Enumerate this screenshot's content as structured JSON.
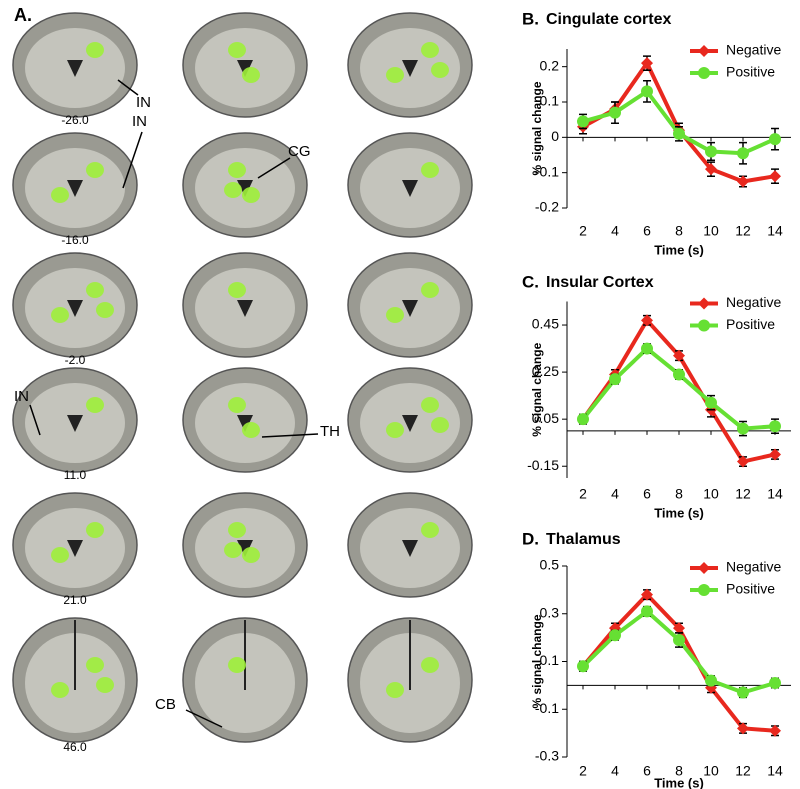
{
  "panel_a": {
    "label": "A.",
    "slice_labels": [
      "-26.0",
      "-16.0",
      "-2.0",
      "11.0",
      "21.0",
      "46.0"
    ],
    "annotations": [
      "IN",
      "IN",
      "CG",
      "IN",
      "TH",
      "CB"
    ]
  },
  "chart_data": [
    {
      "type": "line",
      "panel_label": "B.",
      "title": "Cingulate cortex",
      "xlabel": "Time (s)",
      "ylabel": "% signal change",
      "x": [
        2,
        4,
        6,
        8,
        10,
        12,
        14
      ],
      "xlim": [
        1,
        15
      ],
      "xticks": [
        2,
        4,
        6,
        8,
        10,
        12,
        14
      ],
      "ylim": [
        -0.2,
        0.25
      ],
      "yticks": [
        -0.2,
        -0.1,
        0,
        0.1,
        0.2
      ],
      "legend": "upper right",
      "series": [
        {
          "name": "Negative",
          "color": "#e8281e",
          "values": [
            0.03,
            0.08,
            0.21,
            0.02,
            -0.09,
            -0.125,
            -0.11
          ],
          "errors": [
            0.02,
            0.02,
            0.02,
            0.02,
            0.02,
            0.015,
            0.02
          ]
        },
        {
          "name": "Positive",
          "color": "#66e033",
          "values": [
            0.045,
            0.07,
            0.13,
            0.01,
            -0.04,
            -0.045,
            -0.005
          ],
          "errors": [
            0.02,
            0.03,
            0.03,
            0.02,
            0.025,
            0.03,
            0.03
          ]
        }
      ]
    },
    {
      "type": "line",
      "panel_label": "C.",
      "title": "Insular Cortex",
      "xlabel": "Time (s)",
      "ylabel": "% signal change",
      "x": [
        2,
        4,
        6,
        8,
        10,
        12,
        14
      ],
      "xlim": [
        1,
        15
      ],
      "xticks": [
        2,
        4,
        6,
        8,
        10,
        12,
        14
      ],
      "ylim": [
        -0.2,
        0.55
      ],
      "yticks": [
        -0.15,
        0.05,
        0.25,
        0.45
      ],
      "legend": "upper right",
      "series": [
        {
          "name": "Negative",
          "color": "#e8281e",
          "values": [
            0.05,
            0.24,
            0.47,
            0.32,
            0.09,
            -0.13,
            -0.1
          ],
          "errors": [
            0.02,
            0.02,
            0.02,
            0.02,
            0.03,
            0.02,
            0.02
          ]
        },
        {
          "name": "Positive",
          "color": "#66e033",
          "values": [
            0.05,
            0.22,
            0.35,
            0.24,
            0.12,
            0.01,
            0.02
          ],
          "errors": [
            0.02,
            0.02,
            0.02,
            0.02,
            0.03,
            0.03,
            0.03
          ]
        }
      ]
    },
    {
      "type": "line",
      "panel_label": "D.",
      "title": "Thalamus",
      "xlabel": "Time (s)",
      "ylabel": "% signal change",
      "x": [
        2,
        4,
        6,
        8,
        10,
        12,
        14
      ],
      "xlim": [
        1,
        15
      ],
      "xticks": [
        2,
        4,
        6,
        8,
        10,
        12,
        14
      ],
      "ylim": [
        -0.3,
        0.5
      ],
      "yticks": [
        -0.3,
        -0.1,
        0.1,
        0.3,
        0.5
      ],
      "legend": "upper right",
      "series": [
        {
          "name": "Negative",
          "color": "#e8281e",
          "values": [
            0.08,
            0.24,
            0.38,
            0.24,
            -0.01,
            -0.18,
            -0.19
          ],
          "errors": [
            0.02,
            0.02,
            0.02,
            0.02,
            0.02,
            0.02,
            0.02
          ]
        },
        {
          "name": "Positive",
          "color": "#66e033",
          "values": [
            0.08,
            0.21,
            0.31,
            0.19,
            0.02,
            -0.03,
            0.01
          ],
          "errors": [
            0.02,
            0.02,
            0.02,
            0.03,
            0.02,
            0.02,
            0.02
          ]
        }
      ]
    }
  ]
}
